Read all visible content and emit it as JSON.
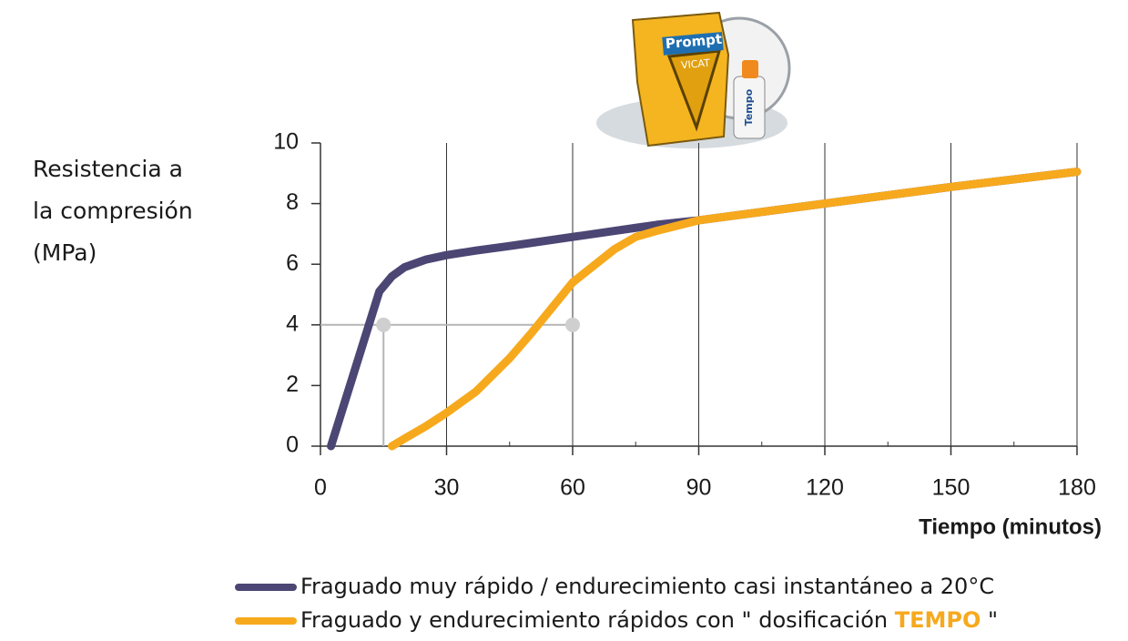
{
  "chart_data": {
    "type": "line",
    "ylabel_lines": [
      "Resistencia a",
      "la compresión",
      "(MPa)"
    ],
    "xlabel": "Tiempo (minutos)",
    "x": [
      2.5,
      14,
      17,
      20,
      25,
      30,
      37,
      45,
      50,
      60,
      70,
      75,
      80,
      90,
      120,
      150,
      180
    ],
    "series": [
      {
        "name": "Fraguado muy rápido / endurecimiento casi instantáneo a 20°C",
        "color": "#4b4673",
        "values": [
          0,
          5.1,
          5.6,
          5.9,
          6.15,
          6.3,
          6.45,
          6.6,
          6.7,
          6.9,
          7.1,
          7.2,
          7.3,
          7.45,
          8.0,
          8.55,
          9.05
        ]
      },
      {
        "name": "Fraguado y endurecimiento rápidos con \" dosificación TEMPO \"",
        "name_highlight": "TEMPO",
        "color": "#f7a91d",
        "values": [
          null,
          null,
          0,
          0.25,
          0.65,
          1.1,
          1.8,
          2.9,
          3.7,
          5.4,
          6.5,
          6.9,
          7.1,
          7.45,
          8.0,
          8.55,
          9.05
        ]
      }
    ],
    "xlim": [
      0,
      180
    ],
    "xticks": [
      0,
      30,
      60,
      90,
      120,
      150,
      180
    ],
    "xminor": [
      15,
      45,
      75,
      105,
      135,
      165
    ],
    "ylim": [
      0,
      10
    ],
    "yticks": [
      0,
      2,
      4,
      6,
      8,
      10
    ],
    "grid": true,
    "guide": {
      "y": 4,
      "x": [
        15,
        60
      ]
    },
    "logo": {
      "brand": "Prompt",
      "label": "VICAT",
      "product": "Tempo"
    }
  }
}
